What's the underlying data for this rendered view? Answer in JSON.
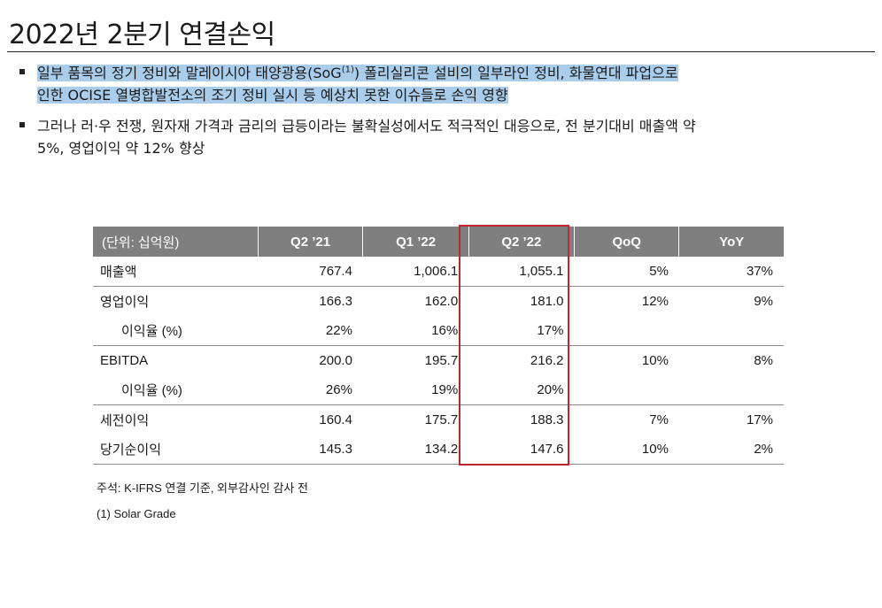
{
  "title": "2022년 2분기 연결손익",
  "bullets": [
    {
      "line1_pre": "일부 품목의 정기 정비와 말레이시아 태양광용(SoG",
      "line1_sup": "(1)",
      "line1_post": ") 폴리실리콘 설비의 일부라인 정비, 화물연대 파업으로",
      "line2": "인한 OCISE 열병합발전소의 조기 정비 실시 등 예상치 못한 이슈들로 손익 영향"
    },
    {
      "line1": "그러나 러·우 전쟁, 원자재 가격과 금리의 급등이라는 불확실성에서도 적극적인 대응으로, 전 분기대비 매출액 약",
      "line2": "5%, 영업이익 약 12% 향상"
    }
  ],
  "table": {
    "headers": [
      "(단위: 십억원)",
      "Q2 ’21",
      "Q1 ’22",
      "Q2 ’22",
      "QoQ",
      "YoY"
    ],
    "rows": [
      {
        "label": "매출액",
        "values": [
          "767.4",
          "1,006.1",
          "1,055.1",
          "5%",
          "37%"
        ]
      },
      {
        "label": "영업이익",
        "values": [
          "166.3",
          "162.0",
          "181.0",
          "12%",
          "9%"
        ]
      },
      {
        "label": "이익율 (%)",
        "values": [
          "22%",
          "16%",
          "17%",
          "",
          ""
        ]
      },
      {
        "label": "EBITDA",
        "values": [
          "200.0",
          "195.7",
          "216.2",
          "10%",
          "8%"
        ]
      },
      {
        "label": "이익율 (%)",
        "values": [
          "26%",
          "19%",
          "20%",
          "",
          ""
        ]
      },
      {
        "label": "세전이익",
        "values": [
          "160.4",
          "175.7",
          "188.3",
          "7%",
          "17%"
        ]
      },
      {
        "label": "당기순이익",
        "values": [
          "145.3",
          "134.2",
          "147.6",
          "10%",
          "2%"
        ]
      }
    ]
  },
  "notes": {
    "source": "주석: K-IFRS 연결 기준, 외부감사인 감사 전",
    "footnote": "(1)  Solar Grade"
  },
  "colors": {
    "header_bg": "#7f7f7f",
    "highlight_text_bg": "#a9cdea",
    "highlight_box": "#c0242e"
  }
}
